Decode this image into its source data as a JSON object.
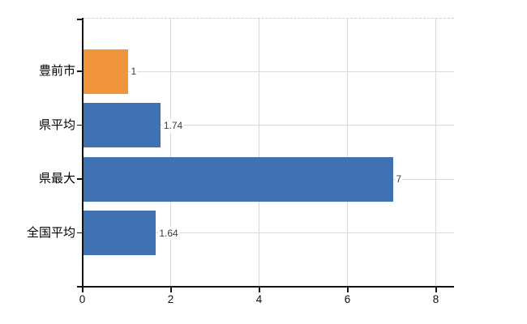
{
  "chart_data": {
    "type": "bar",
    "orientation": "horizontal",
    "title": "",
    "xlabel": "",
    "ylabel": "",
    "categories": [
      "豊前市",
      "県平均",
      "県最大",
      "全国平均"
    ],
    "values": [
      1,
      1.74,
      7,
      1.64
    ],
    "value_labels": [
      "1",
      "1.74",
      "7",
      "1.64"
    ],
    "bar_colors": [
      "#f0953c",
      "#4071b3",
      "#4071b3",
      "#4071b3"
    ],
    "xlim": [
      0,
      8.42
    ],
    "xticks": [
      0,
      2,
      4,
      6,
      8
    ],
    "xtick_labels": [
      "0",
      "2",
      "4",
      "6",
      "8"
    ],
    "grid": "vertical gridlines at x ticks, light horizontal line at each category center, dashed top border",
    "legend": "none"
  },
  "colors": {
    "background": "#ffffff",
    "bar_orange": "#f0953c",
    "bar_blue": "#4071b3",
    "axis": "#141414",
    "gridline": "#d9d9d9",
    "category_line": "#d9ded9",
    "top_border": "#d6cdd1",
    "category_text": "#000000",
    "value_text": "#3c3c3c",
    "tick_text": "#111111"
  }
}
